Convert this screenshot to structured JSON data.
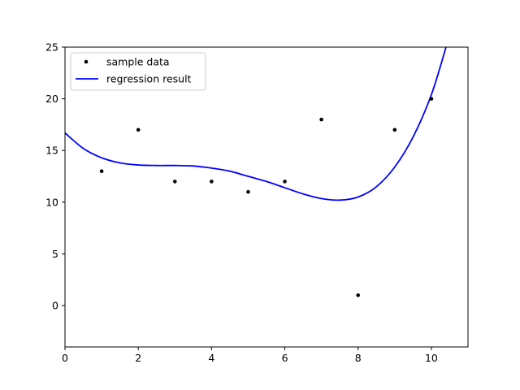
{
  "chart_data": {
    "type": "scatter",
    "xlim": [
      0,
      11
    ],
    "ylim": [
      -4,
      25
    ],
    "x_ticks": [
      0,
      2,
      4,
      6,
      8,
      10
    ],
    "y_ticks": [
      0,
      5,
      10,
      15,
      20,
      25
    ],
    "grid": false,
    "legend_position": "top-left",
    "series": [
      {
        "name": "sample data",
        "kind": "scatter",
        "color": "#000000",
        "marker": "dot",
        "x": [
          1,
          2,
          3,
          4,
          5,
          6,
          7,
          8,
          9,
          10
        ],
        "y": [
          13,
          17,
          12,
          12,
          11,
          12,
          18,
          1,
          17,
          20
        ]
      },
      {
        "name": "regression result",
        "kind": "line",
        "color": "#0000ff",
        "x": [
          0,
          0.5,
          1,
          1.5,
          2,
          2.5,
          3,
          3.5,
          4,
          4.5,
          5,
          5.5,
          6,
          6.5,
          7,
          7.5,
          8,
          8.5,
          9,
          9.5,
          10,
          10.4
        ],
        "y": [
          16.7,
          15.2,
          14.3,
          13.8,
          13.6,
          13.55,
          13.55,
          13.5,
          13.3,
          13.0,
          12.5,
          12.0,
          11.4,
          10.8,
          10.35,
          10.2,
          10.5,
          11.5,
          13.4,
          16.3,
          20.4,
          25
        ]
      }
    ]
  }
}
